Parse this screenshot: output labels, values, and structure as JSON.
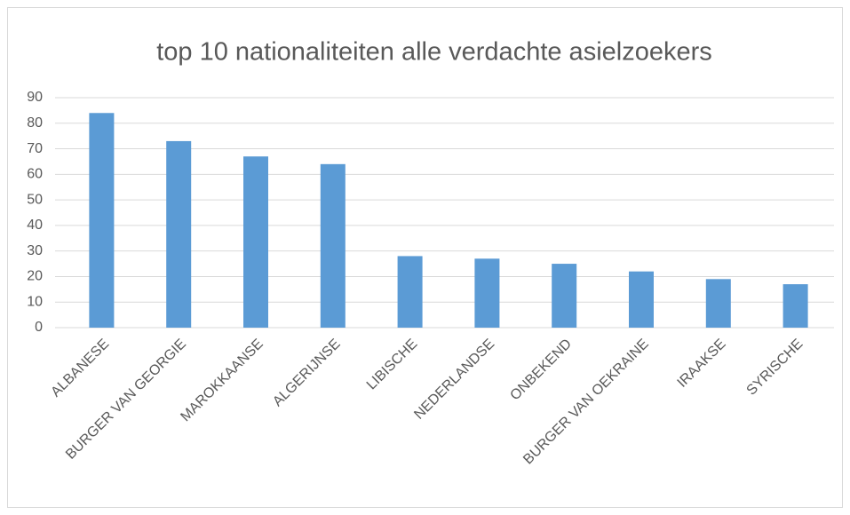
{
  "chart_data": {
    "type": "bar",
    "title": "top 10 nationaliteiten alle verdachte asielzoekers",
    "categories": [
      "ALBANESE",
      "BURGER VAN GEORGIE",
      "MAROKKAANSE",
      "ALGERIJNSE",
      "LIBISCHE",
      "NEDERLANDSE",
      "ONBEKEND",
      "BURGER VAN OEKRAINE",
      "IRAAKSE",
      "SYRISCHE"
    ],
    "values": [
      84,
      73,
      67,
      64,
      28,
      27,
      25,
      22,
      19,
      17
    ],
    "color": "#5b9bd5",
    "ylim": [
      0,
      90
    ],
    "yticks": [
      0,
      10,
      20,
      30,
      40,
      50,
      60,
      70,
      80,
      90
    ],
    "grid": true
  }
}
